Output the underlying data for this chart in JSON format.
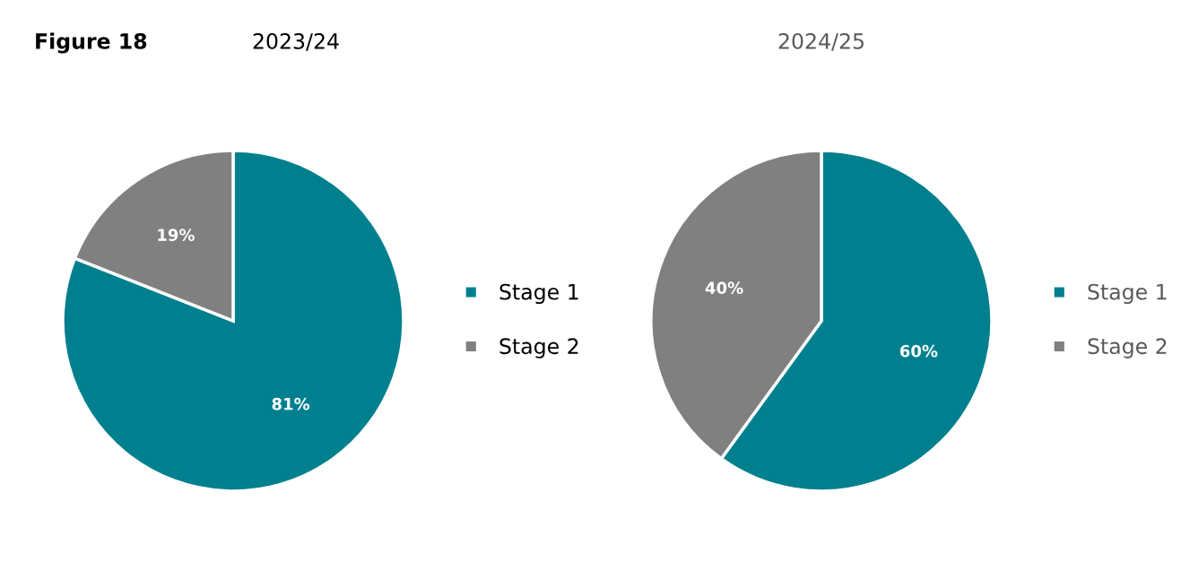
{
  "chart_data": [
    {
      "type": "pie",
      "title": "2023/24",
      "annotations": [
        "Figure 18"
      ],
      "categories": [
        "Stage 1",
        "Stage 2"
      ],
      "values": [
        81,
        19
      ],
      "colors": [
        "#00808f",
        "#808080"
      ],
      "value_labels": [
        "81%",
        "19%"
      ],
      "legend": "right"
    },
    {
      "type": "pie",
      "title": "2024/25",
      "categories": [
        "Stage 1",
        "Stage 2"
      ],
      "values": [
        60,
        40
      ],
      "colors": [
        "#00808f",
        "#808080"
      ],
      "value_labels": [
        "60%",
        "40%"
      ],
      "legend": "right"
    }
  ]
}
